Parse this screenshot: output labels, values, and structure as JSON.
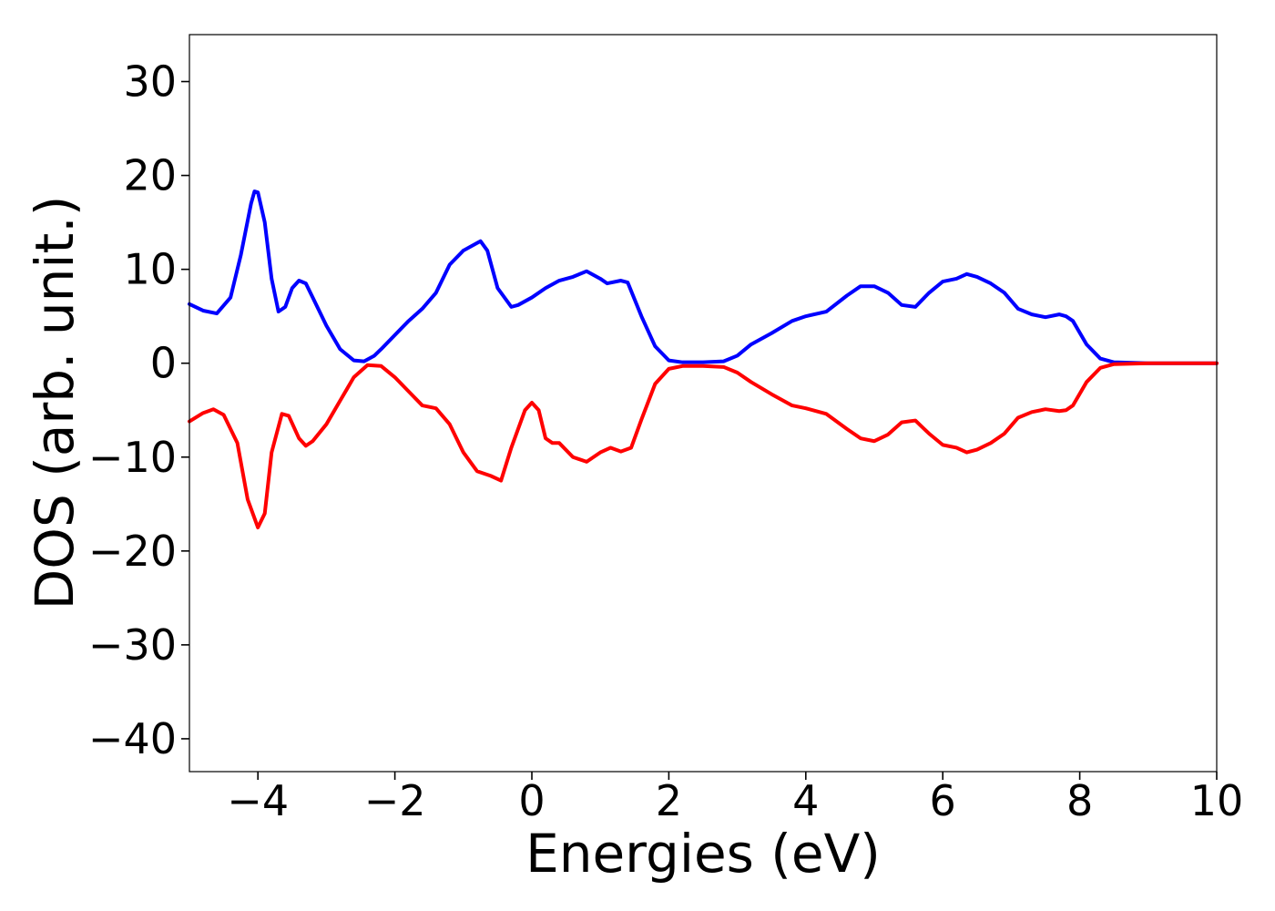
{
  "chart_data": {
    "type": "line",
    "xlabel": "Energies (eV)",
    "ylabel": "DOS (arb. unit.)",
    "xlim": [
      -5,
      10
    ],
    "ylim": [
      -43.5,
      35
    ],
    "grid": false,
    "legend": "none",
    "x_ticks": [
      -4,
      -2,
      0,
      2,
      4,
      6,
      8,
      10
    ],
    "x_tick_labels": [
      "−4",
      "−2",
      "0",
      "2",
      "4",
      "6",
      "8",
      "10"
    ],
    "y_ticks": [
      30,
      20,
      10,
      0,
      -10,
      -20,
      -30,
      -40
    ],
    "y_tick_labels": [
      "30",
      "20",
      "10",
      "0",
      "−10",
      "−20",
      "−30",
      "−40"
    ],
    "series": [
      {
        "color": "#0000ff",
        "x": [
          -5.0,
          -4.8,
          -4.6,
          -4.4,
          -4.25,
          -4.1,
          -4.05,
          -4.0,
          -3.9,
          -3.8,
          -3.7,
          -3.6,
          -3.5,
          -3.4,
          -3.3,
          -3.2,
          -3.0,
          -2.8,
          -2.6,
          -2.45,
          -2.3,
          -2.2,
          -2.0,
          -1.8,
          -1.6,
          -1.4,
          -1.2,
          -1.0,
          -0.8,
          -0.75,
          -0.65,
          -0.5,
          -0.3,
          -0.2,
          0.0,
          0.2,
          0.4,
          0.6,
          0.8,
          1.0,
          1.1,
          1.3,
          1.4,
          1.6,
          1.8,
          2.0,
          2.2,
          2.5,
          2.8,
          3.0,
          3.2,
          3.5,
          3.8,
          4.0,
          4.3,
          4.6,
          4.8,
          5.0,
          5.2,
          5.4,
          5.6,
          5.8,
          6.0,
          6.2,
          6.35,
          6.5,
          6.7,
          6.9,
          7.1,
          7.3,
          7.5,
          7.7,
          7.8,
          7.9,
          8.1,
          8.3,
          8.5,
          9.0,
          10.0
        ],
        "y": [
          6.3,
          5.6,
          5.3,
          7.0,
          11.5,
          17.0,
          18.3,
          18.2,
          15.0,
          9.0,
          5.5,
          6.0,
          8.0,
          8.8,
          8.5,
          7.0,
          4.0,
          1.5,
          0.3,
          0.2,
          0.8,
          1.5,
          3.0,
          4.5,
          5.8,
          7.5,
          10.5,
          12.0,
          12.8,
          13.0,
          12.0,
          8.0,
          6.0,
          6.2,
          7.0,
          8.0,
          8.8,
          9.2,
          9.8,
          9.0,
          8.5,
          8.8,
          8.6,
          5.0,
          1.8,
          0.3,
          0.1,
          0.1,
          0.2,
          0.8,
          2.0,
          3.2,
          4.5,
          5.0,
          5.5,
          7.2,
          8.2,
          8.2,
          7.5,
          6.2,
          6.0,
          7.5,
          8.7,
          9.0,
          9.5,
          9.2,
          8.5,
          7.5,
          5.8,
          5.2,
          4.9,
          5.2,
          5.0,
          4.5,
          2.0,
          0.5,
          0.1,
          0.0,
          0.0
        ]
      },
      {
        "color": "#ff0000",
        "x": [
          -5.0,
          -4.8,
          -4.65,
          -4.5,
          -4.3,
          -4.15,
          -4.0,
          -3.9,
          -3.8,
          -3.65,
          -3.55,
          -3.4,
          -3.3,
          -3.2,
          -3.0,
          -2.8,
          -2.6,
          -2.4,
          -2.2,
          -2.0,
          -1.8,
          -1.6,
          -1.4,
          -1.2,
          -1.0,
          -0.8,
          -0.6,
          -0.45,
          -0.3,
          -0.1,
          0.0,
          0.1,
          0.2,
          0.3,
          0.4,
          0.6,
          0.8,
          1.0,
          1.15,
          1.3,
          1.45,
          1.6,
          1.8,
          2.0,
          2.2,
          2.5,
          2.8,
          3.0,
          3.2,
          3.5,
          3.8,
          4.0,
          4.3,
          4.6,
          4.8,
          5.0,
          5.2,
          5.4,
          5.6,
          5.8,
          6.0,
          6.2,
          6.35,
          6.5,
          6.7,
          6.9,
          7.1,
          7.3,
          7.5,
          7.7,
          7.8,
          7.9,
          8.1,
          8.3,
          8.5,
          9.0,
          10.0
        ],
        "y": [
          -6.2,
          -5.3,
          -4.9,
          -5.5,
          -8.5,
          -14.5,
          -17.5,
          -16.0,
          -9.5,
          -5.4,
          -5.6,
          -8.0,
          -8.8,
          -8.3,
          -6.5,
          -4.0,
          -1.5,
          -0.2,
          -0.3,
          -1.5,
          -3.0,
          -4.5,
          -4.8,
          -6.5,
          -9.5,
          -11.5,
          -12.0,
          -12.5,
          -9.0,
          -5.0,
          -4.2,
          -5.0,
          -8.0,
          -8.5,
          -8.5,
          -10.0,
          -10.5,
          -9.5,
          -9.0,
          -9.4,
          -9.0,
          -6.0,
          -2.2,
          -0.6,
          -0.3,
          -0.3,
          -0.4,
          -1.0,
          -2.0,
          -3.3,
          -4.5,
          -4.8,
          -5.4,
          -7.0,
          -8.0,
          -8.3,
          -7.6,
          -6.3,
          -6.1,
          -7.5,
          -8.7,
          -9.0,
          -9.5,
          -9.2,
          -8.5,
          -7.5,
          -5.8,
          -5.2,
          -4.9,
          -5.1,
          -5.0,
          -4.5,
          -2.0,
          -0.5,
          -0.1,
          0.0,
          0.0
        ]
      }
    ]
  }
}
